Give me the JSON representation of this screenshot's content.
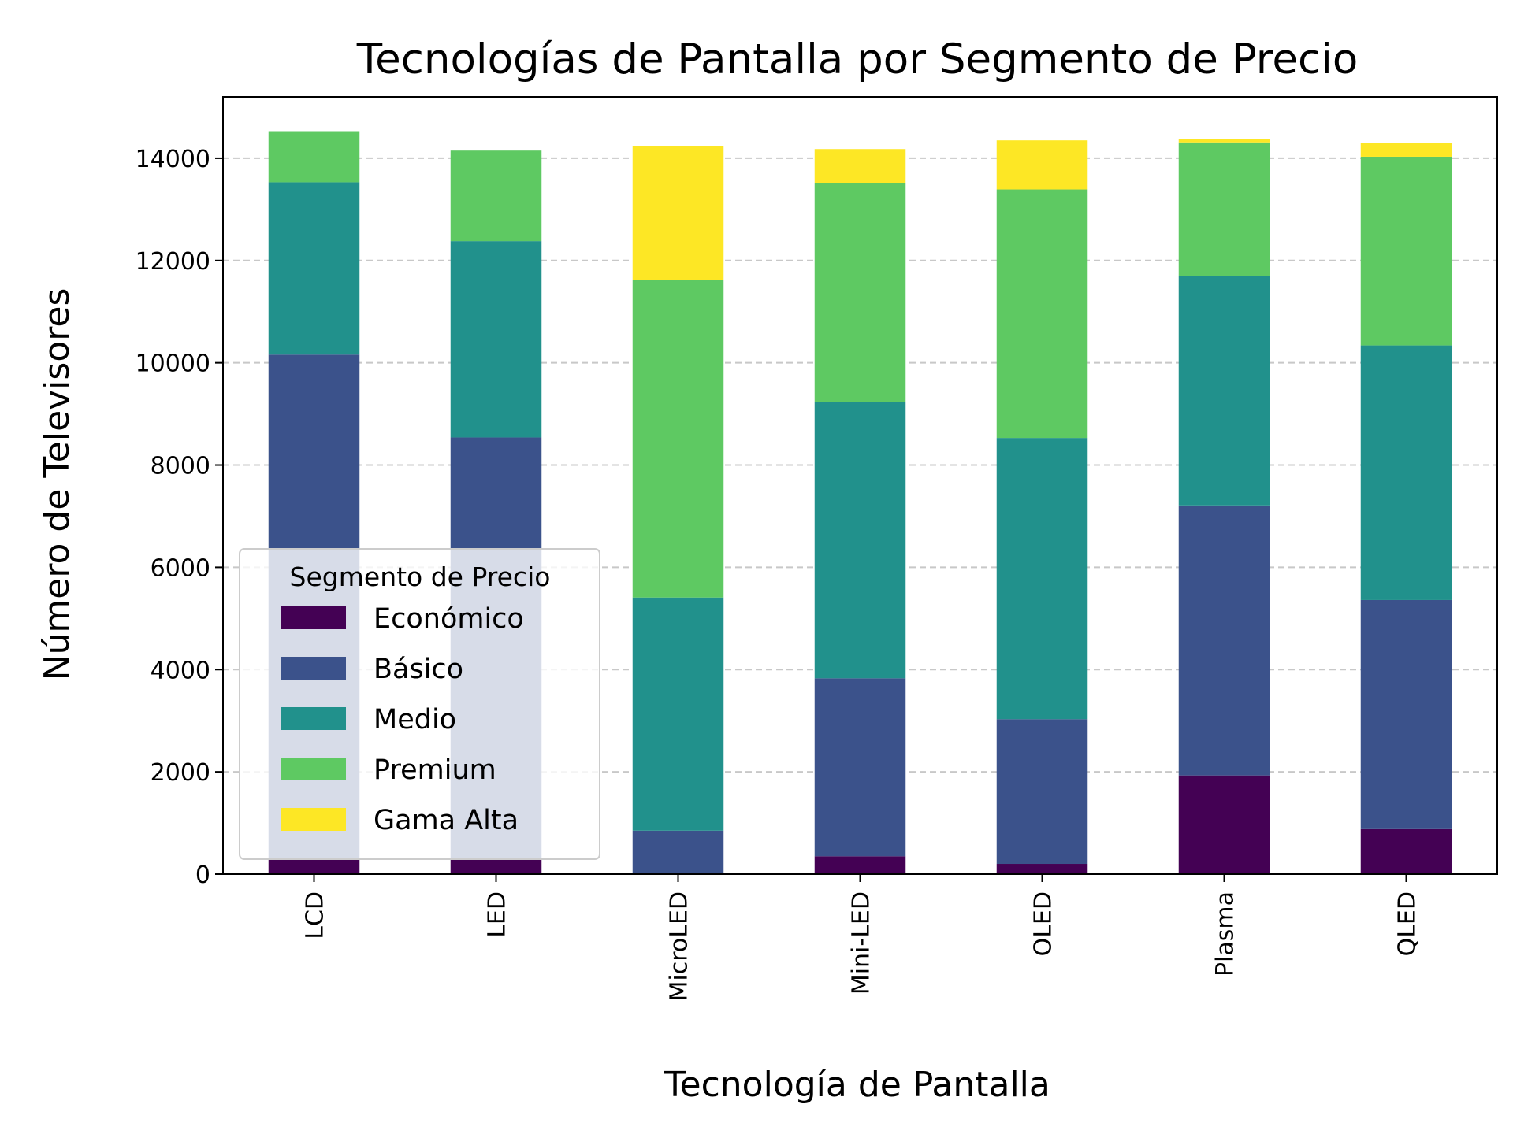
{
  "chart_data": {
    "type": "bar",
    "stacked": true,
    "title": "Tecnologías de Pantalla por Segmento de Precio",
    "xlabel": "Tecnología de Pantalla",
    "ylabel": "Número de Televisores",
    "categories": [
      "LCD",
      "LED",
      "MicroLED",
      "Mini-LED",
      "OLED",
      "Plasma",
      "QLED"
    ],
    "series": [
      {
        "name": "Económico",
        "color": "#440154",
        "values": [
          280,
          280,
          0,
          350,
          200,
          1930,
          880
        ]
      },
      {
        "name": "Básico",
        "color": "#3b528b",
        "values": [
          9880,
          8260,
          850,
          3480,
          2830,
          5280,
          4480
        ]
      },
      {
        "name": "Medio",
        "color": "#21918c",
        "values": [
          3370,
          3840,
          4560,
          5400,
          5500,
          4480,
          4980
        ]
      },
      {
        "name": "Premium",
        "color": "#5ec962",
        "values": [
          1000,
          1770,
          6210,
          4290,
          4860,
          2620,
          3690
        ]
      },
      {
        "name": "Gama Alta",
        "color": "#fde725",
        "values": [
          0,
          0,
          2610,
          660,
          960,
          60,
          270
        ]
      }
    ],
    "ylim": [
      0,
      15200
    ],
    "yticks": [
      "0",
      "2000",
      "4000",
      "6000",
      "8000",
      "10000",
      "12000",
      "14000"
    ],
    "grid": "y-dashed",
    "legend": {
      "title": "Segmento de Precio",
      "position": "lower-left"
    }
  }
}
